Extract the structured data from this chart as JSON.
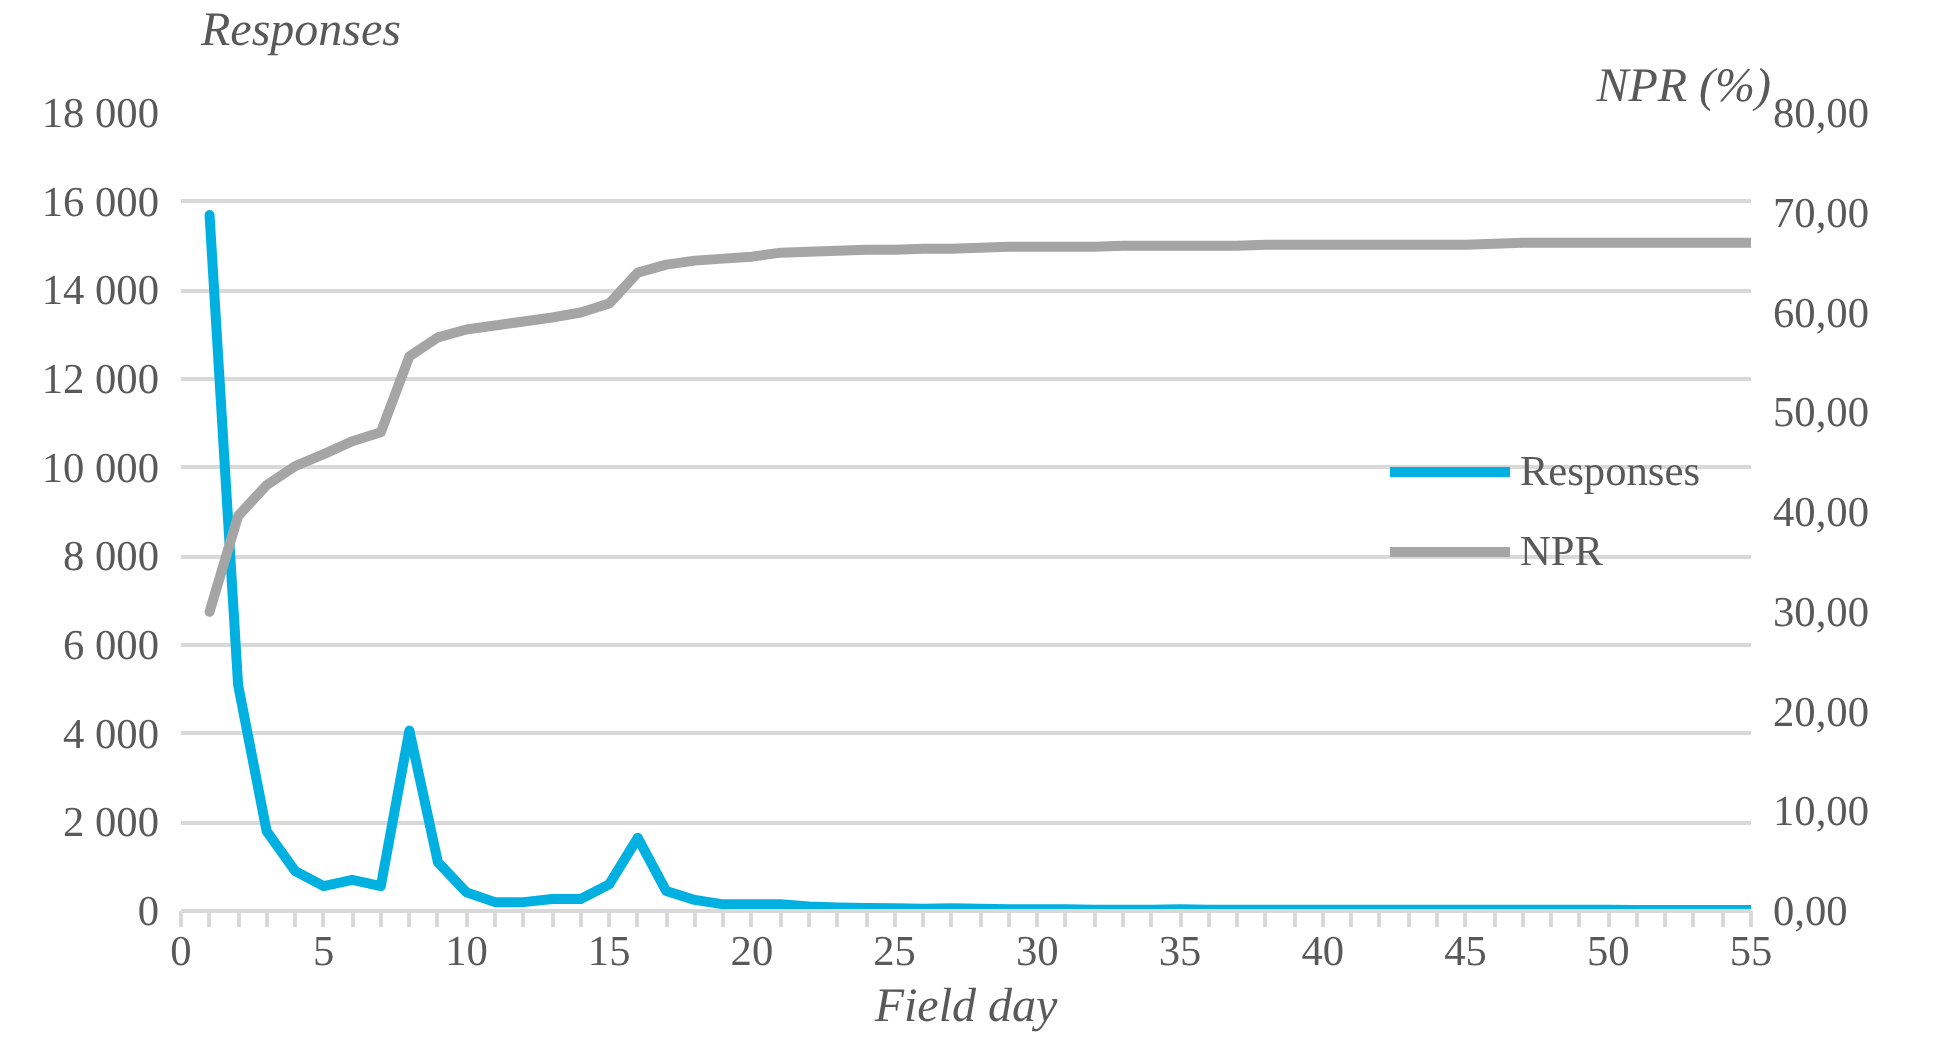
{
  "chart_data": {
    "type": "line",
    "xlabel": "Field day",
    "ylabel": "Responses",
    "y2label": "NPR (%)",
    "x": [
      1,
      2,
      3,
      4,
      5,
      6,
      7,
      8,
      9,
      10,
      11,
      12,
      13,
      14,
      15,
      16,
      17,
      18,
      19,
      20,
      21,
      22,
      23,
      24,
      25,
      26,
      27,
      28,
      29,
      30,
      31,
      32,
      33,
      34,
      35,
      36,
      37,
      38,
      39,
      40,
      41,
      42,
      43,
      44,
      45,
      46,
      47,
      48,
      49,
      50,
      51,
      52,
      53,
      54,
      55
    ],
    "series": [
      {
        "name": "Responses",
        "color": "#00b0e0",
        "values": [
          15700,
          5100,
          1800,
          900,
          560,
          700,
          560,
          4070,
          1100,
          420,
          200,
          200,
          270,
          270,
          600,
          1650,
          450,
          250,
          150,
          150,
          150,
          100,
          80,
          70,
          60,
          50,
          60,
          50,
          40,
          40,
          40,
          30,
          30,
          30,
          40,
          30,
          30,
          30,
          30,
          30,
          30,
          30,
          30,
          30,
          30,
          30,
          30,
          30,
          30,
          30,
          20,
          20,
          20,
          20,
          20
        ]
      },
      {
        "name": "NPR",
        "color": "#a5a5a5",
        "axis": "y2",
        "values": [
          30.0,
          39.6,
          42.7,
          44.6,
          45.8,
          47.1,
          48.0,
          55.6,
          57.5,
          58.3,
          58.7,
          59.1,
          59.5,
          60.0,
          60.9,
          64.0,
          64.8,
          65.2,
          65.4,
          65.6,
          66.0,
          66.1,
          66.2,
          66.3,
          66.3,
          66.4,
          66.4,
          66.5,
          66.6,
          66.6,
          66.6,
          66.6,
          66.7,
          66.7,
          66.7,
          66.7,
          66.7,
          66.8,
          66.8,
          66.8,
          66.8,
          66.8,
          66.8,
          66.8,
          66.8,
          66.9,
          67.0,
          67.0,
          67.0,
          67.0,
          67.0,
          67.0,
          67.0,
          67.0,
          67.0
        ]
      }
    ],
    "xlim": [
      0,
      55
    ],
    "xticks": [
      0,
      {
        "value": 1,
        "label": null
      },
      {
        "value": 2,
        "label": null
      },
      {
        "value": 3,
        "label": null
      },
      {
        "value": 4,
        "label": null
      },
      5,
      {
        "value": 6,
        "label": null
      },
      {
        "value": 7,
        "label": null
      },
      {
        "value": 8,
        "label": null
      },
      {
        "value": 9,
        "label": null
      },
      10,
      {
        "value": 11,
        "label": null
      },
      {
        "value": 12,
        "label": null
      },
      {
        "value": 13,
        "label": null
      },
      {
        "value": 14,
        "label": null
      },
      15,
      {
        "value": 16,
        "label": null
      },
      {
        "value": 17,
        "label": null
      },
      {
        "value": 18,
        "label": null
      },
      {
        "value": 19,
        "label": null
      },
      20,
      {
        "value": 21,
        "label": null
      },
      {
        "value": 22,
        "label": null
      },
      {
        "value": 23,
        "label": null
      },
      {
        "value": 24,
        "label": null
      },
      25,
      {
        "value": 26,
        "label": null
      },
      {
        "value": 27,
        "label": null
      },
      {
        "value": 28,
        "label": null
      },
      {
        "value": 29,
        "label": null
      },
      30,
      {
        "value": 31,
        "label": null
      },
      {
        "value": 32,
        "label": null
      },
      {
        "value": 33,
        "label": null
      },
      {
        "value": 34,
        "label": null
      },
      35,
      {
        "value": 36,
        "label": null
      },
      {
        "value": 37,
        "label": null
      },
      {
        "value": 38,
        "label": null
      },
      {
        "value": 39,
        "label": null
      },
      40,
      {
        "value": 41,
        "label": null
      },
      {
        "value": 42,
        "label": null
      },
      {
        "value": 43,
        "label": null
      },
      {
        "value": 44,
        "label": null
      },
      45,
      {
        "value": 46,
        "label": null
      },
      {
        "value": 47,
        "label": null
      },
      {
        "value": 48,
        "label": null
      },
      {
        "value": 49,
        "label": null
      },
      50,
      {
        "value": 51,
        "label": null
      },
      {
        "value": 52,
        "label": null
      },
      {
        "value": 53,
        "label": null
      },
      {
        "value": 54,
        "label": null
      },
      55
    ],
    "ylim": [
      0,
      18000
    ],
    "yticks": [
      0,
      {
        "value": 2000,
        "label": "2 000"
      },
      {
        "value": 4000,
        "label": "4 000"
      },
      {
        "value": 6000,
        "label": "6 000"
      },
      {
        "value": 8000,
        "label": "8 000"
      },
      {
        "value": 10000,
        "label": "10 000"
      },
      {
        "value": 12000,
        "label": "12 000"
      },
      {
        "value": 14000,
        "label": "14 000"
      },
      {
        "value": 16000,
        "label": "16 000"
      },
      {
        "value": 18000,
        "label": "18 000"
      }
    ],
    "y2lim": [
      0,
      80
    ],
    "y2ticks": [
      {
        "value": 0,
        "label": "0,00"
      },
      {
        "value": 10,
        "label": "10,00"
      },
      {
        "value": 20,
        "label": "20,00"
      },
      {
        "value": 30,
        "label": "30,00"
      },
      {
        "value": 40,
        "label": "40,00"
      },
      {
        "value": 50,
        "label": "50,00"
      },
      {
        "value": 60,
        "label": "60,00"
      },
      {
        "value": 70,
        "label": "70,00"
      },
      {
        "value": 80,
        "label": "80,00"
      }
    ],
    "grid": "y",
    "legend": "right",
    "marker": "none",
    "line_style": "solid"
  }
}
